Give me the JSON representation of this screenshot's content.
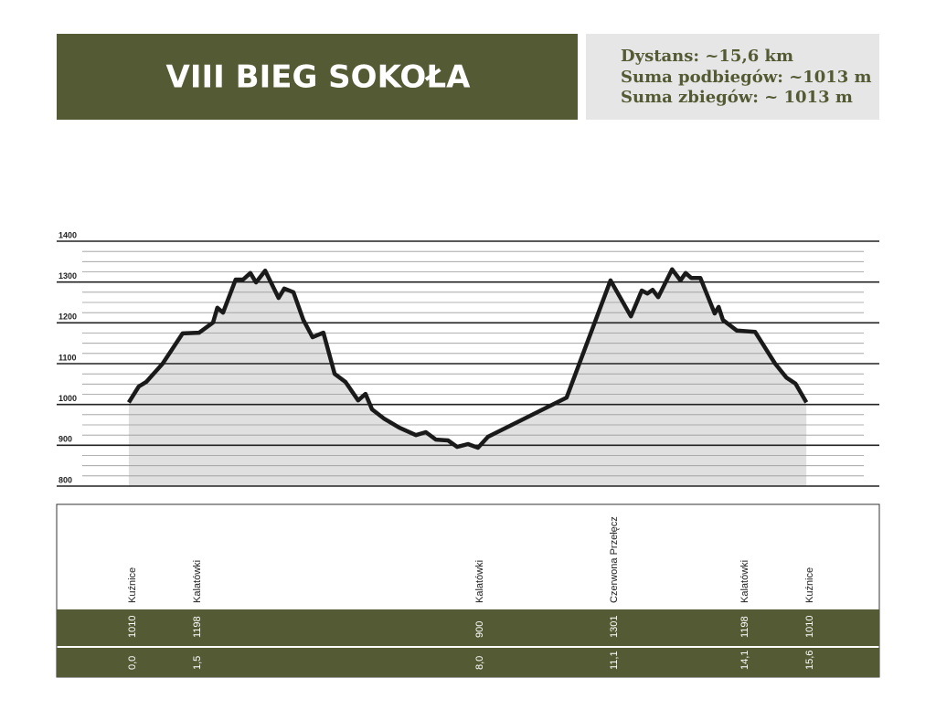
{
  "header": {
    "title": "VIII BIEG SOKOŁA",
    "info": [
      "Dystans: ~15,6 km",
      "Suma podbiegów: ~1013 m",
      "Suma zbiegów: ~ 1013 m"
    ]
  },
  "chart_data": {
    "type": "area",
    "x": [
      0,
      0.23,
      0.4,
      0.78,
      1.24,
      1.62,
      1.94,
      2.04,
      2.17,
      2.46,
      2.63,
      2.8,
      2.93,
      3.14,
      3.45,
      3.58,
      3.79,
      4.02,
      4.23,
      4.48,
      4.74,
      4.99,
      5.28,
      5.45,
      5.6,
      5.87,
      6.23,
      6.61,
      6.84,
      7.07,
      7.35,
      7.56,
      7.81,
      8.04,
      8.27,
      10.08,
      11.09,
      11.56,
      11.81,
      11.94,
      12.06,
      12.19,
      12.51,
      12.7,
      12.82,
      12.95,
      13.16,
      13.49,
      13.58,
      13.68,
      14.0,
      14.42,
      14.88,
      15.14,
      15.35,
      15.6
    ],
    "values": [
      1005,
      1044,
      1055,
      1100,
      1174,
      1176,
      1201,
      1237,
      1225,
      1306,
      1306,
      1322,
      1299,
      1328,
      1261,
      1284,
      1275,
      1207,
      1165,
      1176,
      1075,
      1055,
      1010,
      1026,
      988,
      966,
      943,
      925,
      932,
      914,
      912,
      896,
      903,
      894,
      921,
      1017,
      1304,
      1216,
      1279,
      1272,
      1281,
      1263,
      1331,
      1304,
      1322,
      1310,
      1310,
      1223,
      1239,
      1207,
      1181,
      1178,
      1100,
      1066,
      1051,
      1005
    ],
    "color": "#1a1a1a",
    "fill": "#e0e0e0",
    "xlim": [
      -1.66,
      17.28
    ],
    "ylim": [
      800,
      1400
    ],
    "yticks": [
      800,
      900,
      1000,
      1100,
      1200,
      1300,
      1400
    ],
    "minor_yticks": [
      825,
      850,
      875,
      925,
      950,
      975,
      1025,
      1050,
      1075,
      1125,
      1150,
      1175,
      1225,
      1250,
      1275,
      1325,
      1350,
      1375
    ],
    "grid": true
  },
  "waypoints": {
    "names": [
      "Kuźnice",
      "Kalatówki",
      "Kalatówki",
      "Czerwona Przełęcz",
      "Kalatówki",
      "Kuźnice"
    ],
    "elevations": [
      1010,
      1198,
      900,
      1301,
      1198,
      1010
    ],
    "distances": [
      {
        "value": 0.0,
        "label": "0,0"
      },
      {
        "value": 1.5,
        "label": "1,5"
      },
      {
        "value": 8.0,
        "label": "8,0"
      },
      {
        "value": 11.1,
        "label": "11,1"
      },
      {
        "value": 14.1,
        "label": "14,1"
      },
      {
        "value": 15.6,
        "label": "15,6"
      }
    ]
  }
}
